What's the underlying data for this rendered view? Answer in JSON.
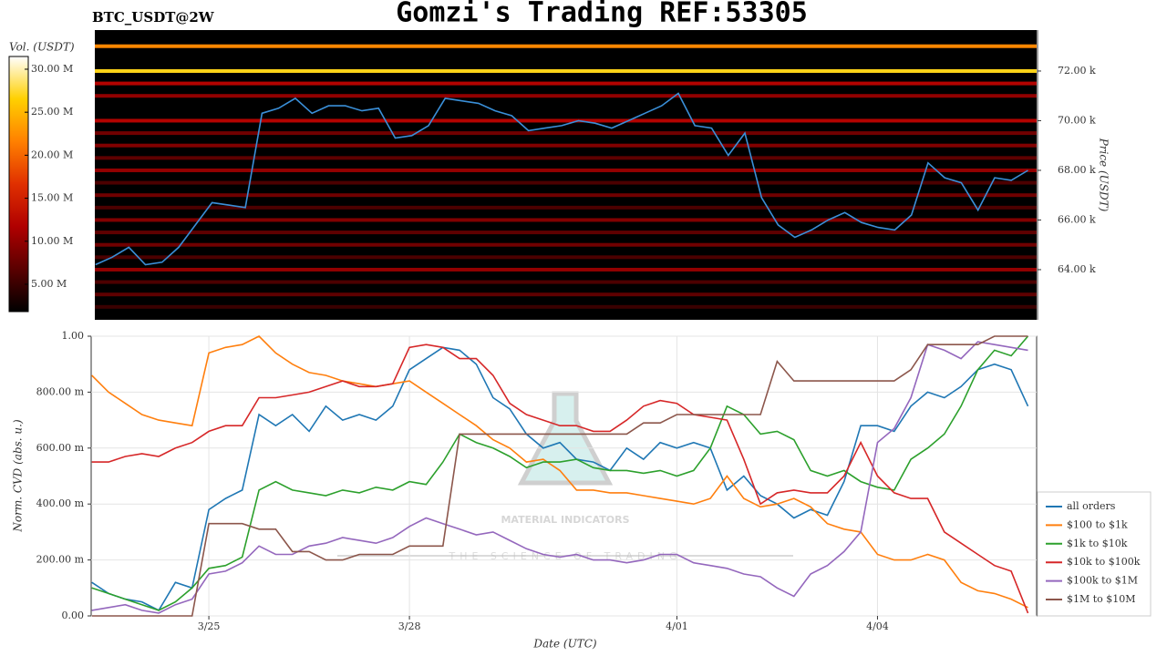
{
  "chart_data": [
    {
      "type": "heatmap",
      "title": "Gomzi's Trading REF:53305",
      "subtitle": "BTC_USDT@2W",
      "y_label": "Price (USDT)",
      "colorbar_label": "Vol. (USDT)",
      "xlim": [
        -1.76,
        12.38
      ],
      "ylim": [
        61980,
        73650
      ],
      "yticks": [
        {
          "value": 64000,
          "label": "64.00 k"
        },
        {
          "value": 66000,
          "label": "66.00 k"
        },
        {
          "value": 68000,
          "label": "68.00 k"
        },
        {
          "value": 70000,
          "label": "70.00 k"
        },
        {
          "value": 72000,
          "label": "72.00 k"
        }
      ],
      "clim": [
        1820000,
        31480000
      ],
      "cticks": [
        {
          "value": 5000000,
          "label": "5.00 M"
        },
        {
          "value": 10000000,
          "label": "10.00 M"
        },
        {
          "value": 15000000,
          "label": "15.00 M"
        },
        {
          "value": 20000000,
          "label": "20.00 M"
        },
        {
          "value": 25000000,
          "label": "25.00 M"
        },
        {
          "value": 30000000,
          "label": "30.00 M"
        }
      ],
      "colormap": [
        "#000000",
        "#5a0000",
        "#b00000",
        "#e03000",
        "#ff8000",
        "#ffd000",
        "#ffffff"
      ],
      "levels": [
        {
          "price": 73000,
          "volume": 22000000
        },
        {
          "price": 72000,
          "volume": 27000000
        },
        {
          "price": 71500,
          "volume": 12000000
        },
        {
          "price": 71000,
          "volume": 10000000
        },
        {
          "price": 70000,
          "volume": 12000000
        },
        {
          "price": 69500,
          "volume": 8000000
        },
        {
          "price": 69000,
          "volume": 9000000
        },
        {
          "price": 68500,
          "volume": 7000000
        },
        {
          "price": 68000,
          "volume": 10000000
        },
        {
          "price": 67500,
          "volume": 6000000
        },
        {
          "price": 67000,
          "volume": 8000000
        },
        {
          "price": 66500,
          "volume": 6000000
        },
        {
          "price": 66000,
          "volume": 9000000
        },
        {
          "price": 65500,
          "volume": 7000000
        },
        {
          "price": 65000,
          "volume": 8000000
        },
        {
          "price": 64500,
          "volume": 6000000
        },
        {
          "price": 64000,
          "volume": 10000000
        },
        {
          "price": 63500,
          "volume": 6000000
        },
        {
          "price": 63000,
          "volume": 7000000
        },
        {
          "price": 62500,
          "volume": 5000000
        }
      ],
      "x": [
        -1.75,
        -1.5,
        -1.25,
        -1,
        -0.75,
        -0.5,
        -0.25,
        0,
        0.25,
        0.5,
        0.75,
        1,
        1.25,
        1.5,
        1.75,
        2,
        2.25,
        2.5,
        2.75,
        3,
        3.25,
        3.5,
        3.75,
        4,
        4.25,
        4.5,
        4.75,
        5,
        5.25,
        5.5,
        5.75,
        6,
        6.25,
        6.5,
        6.75,
        7,
        7.25,
        7.5,
        7.75,
        8,
        8.25,
        8.5,
        8.75,
        9,
        9.25,
        9.5,
        9.75,
        10,
        10.25,
        10.5,
        10.75,
        11,
        11.25,
        11.5,
        11.75,
        12,
        12.25
      ],
      "price": {
        "color": "#3a8fd8",
        "values": [
          64200,
          64500,
          64900,
          64200,
          64300,
          64900,
          65800,
          66700,
          66600,
          66500,
          70300,
          70500,
          70900,
          70300,
          70600,
          70600,
          70400,
          70500,
          69300,
          69400,
          69800,
          70900,
          70800,
          70700,
          70400,
          70200,
          69600,
          69700,
          69800,
          70000,
          69900,
          69700,
          70000,
          70300,
          70600,
          71100,
          69800,
          69700,
          68600,
          69500,
          66900,
          65800,
          65300,
          65600,
          66000,
          66300,
          65900,
          65700,
          65600,
          66200,
          68300,
          67700,
          67500,
          66400,
          67700,
          67600,
          68000
        ]
      }
    },
    {
      "type": "line",
      "x_label": "Date (UTC)",
      "y_label": "Norm. CVD (abs. u.)",
      "annotations": [
        "MATERIAL INDICATORS",
        "THE SCIENCE OF TRADING"
      ],
      "xlim": [
        -1.76,
        12.38
      ],
      "xticks": [
        {
          "value": 0,
          "label": "3/25"
        },
        {
          "value": 3,
          "label": "3/28"
        },
        {
          "value": 7,
          "label": "4/01"
        },
        {
          "value": 10,
          "label": "4/04"
        }
      ],
      "ylim": [
        0,
        1
      ],
      "yticks": [
        {
          "value": 0,
          "label": "0.00"
        },
        {
          "value": 0.2,
          "label": "200.00 m"
        },
        {
          "value": 0.4,
          "label": "400.00 m"
        },
        {
          "value": 0.6,
          "label": "600.00 m"
        },
        {
          "value": 0.8,
          "label": "800.00 m"
        },
        {
          "value": 1,
          "label": "1.00"
        }
      ],
      "grid": true,
      "legend": "lower-right",
      "x": [
        -1.75,
        -1.5,
        -1.25,
        -1,
        -0.75,
        -0.5,
        -0.25,
        0,
        0.25,
        0.5,
        0.75,
        1,
        1.25,
        1.5,
        1.75,
        2,
        2.25,
        2.5,
        2.75,
        3,
        3.25,
        3.5,
        3.75,
        4,
        4.25,
        4.5,
        4.75,
        5,
        5.25,
        5.5,
        5.75,
        6,
        6.25,
        6.5,
        6.75,
        7,
        7.25,
        7.5,
        7.75,
        8,
        8.25,
        8.5,
        8.75,
        9,
        9.25,
        9.5,
        9.75,
        10,
        10.25,
        10.5,
        10.75,
        11,
        11.25,
        11.5,
        11.75,
        12,
        12.25
      ],
      "series": [
        {
          "name": "all orders",
          "color": "#1f77b4",
          "values": [
            0.12,
            0.08,
            0.06,
            0.05,
            0.02,
            0.12,
            0.1,
            0.38,
            0.42,
            0.45,
            0.72,
            0.68,
            0.72,
            0.66,
            0.75,
            0.7,
            0.72,
            0.7,
            0.75,
            0.88,
            0.92,
            0.96,
            0.95,
            0.9,
            0.78,
            0.74,
            0.65,
            0.6,
            0.62,
            0.56,
            0.55,
            0.52,
            0.6,
            0.56,
            0.62,
            0.6,
            0.62,
            0.6,
            0.45,
            0.5,
            0.43,
            0.4,
            0.35,
            0.38,
            0.36,
            0.48,
            0.68,
            0.68,
            0.66,
            0.75,
            0.8,
            0.78,
            0.82,
            0.88,
            0.9,
            0.88,
            0.75
          ]
        },
        {
          "name": "$100 to $1k",
          "color": "#ff7f0e",
          "values": [
            0.86,
            0.8,
            0.76,
            0.72,
            0.7,
            0.69,
            0.68,
            0.94,
            0.96,
            0.97,
            1.0,
            0.94,
            0.9,
            0.87,
            0.86,
            0.84,
            0.83,
            0.82,
            0.83,
            0.84,
            0.8,
            0.76,
            0.72,
            0.68,
            0.63,
            0.6,
            0.55,
            0.56,
            0.52,
            0.45,
            0.45,
            0.44,
            0.44,
            0.43,
            0.42,
            0.41,
            0.4,
            0.42,
            0.5,
            0.42,
            0.39,
            0.4,
            0.42,
            0.39,
            0.33,
            0.31,
            0.3,
            0.22,
            0.2,
            0.2,
            0.22,
            0.2,
            0.12,
            0.09,
            0.08,
            0.06,
            0.03
          ]
        },
        {
          "name": "$1k to $10k",
          "color": "#2ca02c",
          "values": [
            0.1,
            0.08,
            0.06,
            0.04,
            0.02,
            0.05,
            0.1,
            0.17,
            0.18,
            0.21,
            0.45,
            0.48,
            0.45,
            0.44,
            0.43,
            0.45,
            0.44,
            0.46,
            0.45,
            0.48,
            0.47,
            0.55,
            0.65,
            0.62,
            0.6,
            0.57,
            0.53,
            0.55,
            0.55,
            0.56,
            0.53,
            0.52,
            0.52,
            0.51,
            0.52,
            0.5,
            0.52,
            0.6,
            0.75,
            0.72,
            0.65,
            0.66,
            0.63,
            0.52,
            0.5,
            0.52,
            0.48,
            0.46,
            0.45,
            0.56,
            0.6,
            0.65,
            0.75,
            0.88,
            0.95,
            0.93,
            1.0
          ]
        },
        {
          "name": "$10k to $100k",
          "color": "#d62728",
          "values": [
            0.55,
            0.55,
            0.57,
            0.58,
            0.57,
            0.6,
            0.62,
            0.66,
            0.68,
            0.68,
            0.78,
            0.78,
            0.79,
            0.8,
            0.82,
            0.84,
            0.82,
            0.82,
            0.83,
            0.96,
            0.97,
            0.96,
            0.92,
            0.92,
            0.86,
            0.76,
            0.72,
            0.7,
            0.68,
            0.68,
            0.66,
            0.66,
            0.7,
            0.75,
            0.77,
            0.76,
            0.72,
            0.71,
            0.7,
            0.56,
            0.4,
            0.44,
            0.45,
            0.44,
            0.44,
            0.5,
            0.62,
            0.5,
            0.44,
            0.42,
            0.42,
            0.3,
            0.26,
            0.22,
            0.18,
            0.16,
            0.01
          ]
        },
        {
          "name": "$100k to $1M",
          "color": "#9467bd",
          "values": [
            0.02,
            0.03,
            0.04,
            0.02,
            0.01,
            0.04,
            0.06,
            0.15,
            0.16,
            0.19,
            0.25,
            0.22,
            0.22,
            0.25,
            0.26,
            0.28,
            0.27,
            0.26,
            0.28,
            0.32,
            0.35,
            0.33,
            0.31,
            0.29,
            0.3,
            0.27,
            0.24,
            0.22,
            0.21,
            0.22,
            0.2,
            0.2,
            0.19,
            0.2,
            0.22,
            0.22,
            0.19,
            0.18,
            0.17,
            0.15,
            0.14,
            0.1,
            0.07,
            0.15,
            0.18,
            0.23,
            0.3,
            0.62,
            0.67,
            0.78,
            0.97,
            0.95,
            0.92,
            0.98,
            0.97,
            0.96,
            0.95
          ]
        },
        {
          "name": "$1M to $10M",
          "color": "#8c564b",
          "values": [
            0,
            0,
            0,
            0,
            0,
            0,
            0,
            0.33,
            0.33,
            0.33,
            0.31,
            0.31,
            0.23,
            0.23,
            0.2,
            0.2,
            0.22,
            0.22,
            0.22,
            0.25,
            0.25,
            0.25,
            0.65,
            0.65,
            0.65,
            0.65,
            0.65,
            0.65,
            0.65,
            0.65,
            0.65,
            0.65,
            0.65,
            0.69,
            0.69,
            0.72,
            0.72,
            0.72,
            0.72,
            0.72,
            0.72,
            0.91,
            0.84,
            0.84,
            0.84,
            0.84,
            0.84,
            0.84,
            0.84,
            0.88,
            0.97,
            0.97,
            0.97,
            0.97,
            1.0,
            1.0,
            1.0
          ]
        }
      ]
    }
  ]
}
